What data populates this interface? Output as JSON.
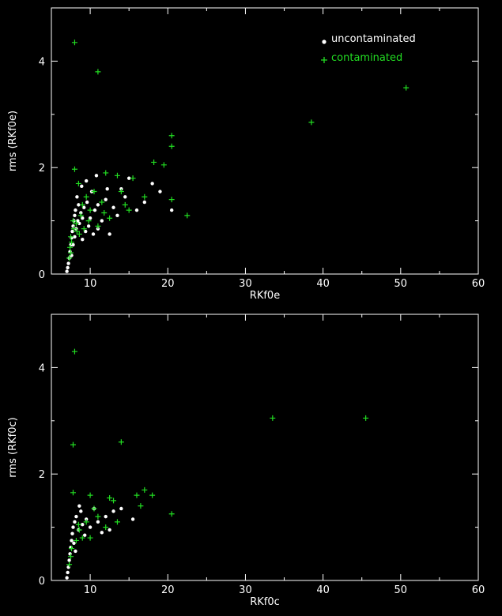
{
  "colors": {
    "background": "#000000",
    "axes": "#ffffff",
    "uncontaminated": "#ffffff",
    "contaminated": "#22dd22"
  },
  "legend": {
    "uncontaminated": "uncontaminated",
    "contaminated": "contaminated",
    "placement": "top-right"
  },
  "chart_data": [
    {
      "type": "scatter",
      "xlabel": "RKf0e",
      "ylabel": "rms (RKf0e)",
      "xlim": [
        5,
        60
      ],
      "ylim": [
        0,
        5
      ],
      "xticks": [
        10,
        20,
        30,
        40,
        50,
        60
      ],
      "yticks": [
        0,
        2,
        4
      ],
      "grid": false,
      "series": [
        {
          "name": "uncontaminated",
          "marker": "dot",
          "points": [
            [
              7.0,
              0.05
            ],
            [
              7.1,
              0.12
            ],
            [
              7.2,
              0.2
            ],
            [
              7.3,
              0.3
            ],
            [
              7.4,
              0.42
            ],
            [
              7.5,
              0.55
            ],
            [
              7.6,
              0.68
            ],
            [
              7.7,
              0.8
            ],
            [
              7.8,
              0.9
            ],
            [
              7.9,
              1.0
            ],
            [
              8.0,
              1.1
            ],
            [
              8.1,
              1.2
            ],
            [
              8.2,
              0.85
            ],
            [
              8.4,
              1.0
            ],
            [
              8.5,
              1.3
            ],
            [
              8.6,
              0.95
            ],
            [
              8.8,
              1.15
            ],
            [
              9.0,
              1.05
            ],
            [
              9.2,
              1.25
            ],
            [
              9.4,
              0.8
            ],
            [
              9.6,
              1.35
            ],
            [
              9.8,
              0.9
            ],
            [
              10.0,
              1.05
            ],
            [
              10.2,
              1.55
            ],
            [
              10.4,
              0.75
            ],
            [
              10.6,
              1.2
            ],
            [
              11.0,
              1.3
            ],
            [
              11.5,
              1.0
            ],
            [
              12.0,
              1.4
            ],
            [
              12.5,
              0.75
            ],
            [
              13.0,
              1.25
            ],
            [
              13.5,
              1.1
            ],
            [
              14.0,
              1.6
            ],
            [
              14.5,
              1.45
            ],
            [
              15.0,
              1.8
            ],
            [
              16.0,
              1.2
            ],
            [
              17.0,
              1.35
            ],
            [
              18.0,
              1.7
            ],
            [
              19.0,
              1.55
            ],
            [
              20.5,
              1.2
            ],
            [
              8.3,
              1.45
            ],
            [
              8.9,
              1.65
            ],
            [
              9.5,
              1.75
            ],
            [
              10.8,
              1.85
            ],
            [
              12.2,
              1.6
            ],
            [
              7.6,
              0.35
            ],
            [
              7.8,
              0.55
            ],
            [
              8.0,
              0.7
            ],
            [
              9.0,
              0.65
            ],
            [
              11.0,
              0.85
            ]
          ]
        },
        {
          "name": "contaminated",
          "marker": "plus",
          "points": [
            [
              8.0,
              4.35
            ],
            [
              11.0,
              3.8
            ],
            [
              50.7,
              3.5
            ],
            [
              38.5,
              2.85
            ],
            [
              20.5,
              2.6
            ],
            [
              20.5,
              2.4
            ],
            [
              18.2,
              2.1
            ],
            [
              19.5,
              2.05
            ],
            [
              8.0,
              1.97
            ],
            [
              12.0,
              1.9
            ],
            [
              13.5,
              1.85
            ],
            [
              15.5,
              1.8
            ],
            [
              14.0,
              1.55
            ],
            [
              17.0,
              1.45
            ],
            [
              20.5,
              1.4
            ],
            [
              22.5,
              1.1
            ],
            [
              15.0,
              1.2
            ],
            [
              10.5,
              1.55
            ],
            [
              9.0,
              1.3
            ],
            [
              11.5,
              1.35
            ],
            [
              8.5,
              1.7
            ],
            [
              9.5,
              1.45
            ],
            [
              7.8,
              1.0
            ],
            [
              8.2,
              0.95
            ],
            [
              10.0,
              1.2
            ],
            [
              8.8,
              1.1
            ],
            [
              7.5,
              0.7
            ],
            [
              8.3,
              0.8
            ],
            [
              9.2,
              0.85
            ],
            [
              11.0,
              0.9
            ],
            [
              7.4,
              0.5
            ],
            [
              7.6,
              0.6
            ],
            [
              7.9,
              0.85
            ],
            [
              8.6,
              0.75
            ],
            [
              12.5,
              1.05
            ],
            [
              14.5,
              1.3
            ],
            [
              7.3,
              0.3
            ],
            [
              7.5,
              0.4
            ],
            [
              9.8,
              1.0
            ],
            [
              11.8,
              1.15
            ]
          ]
        }
      ]
    },
    {
      "type": "scatter",
      "xlabel": "RKf0c",
      "ylabel": "rms (RKf0c)",
      "xlim": [
        5,
        60
      ],
      "ylim": [
        0,
        5
      ],
      "xticks": [
        10,
        20,
        30,
        40,
        50,
        60
      ],
      "yticks": [
        0,
        2,
        4
      ],
      "grid": false,
      "series": [
        {
          "name": "uncontaminated",
          "marker": "dot",
          "points": [
            [
              7.0,
              0.05
            ],
            [
              7.1,
              0.15
            ],
            [
              7.2,
              0.25
            ],
            [
              7.3,
              0.38
            ],
            [
              7.4,
              0.5
            ],
            [
              7.5,
              0.62
            ],
            [
              7.6,
              0.75
            ],
            [
              7.7,
              0.88
            ],
            [
              7.8,
              1.0
            ],
            [
              8.0,
              1.1
            ],
            [
              8.2,
              1.2
            ],
            [
              8.5,
              0.95
            ],
            [
              8.8,
              1.3
            ],
            [
              9.0,
              1.05
            ],
            [
              9.5,
              1.15
            ],
            [
              10.0,
              1.0
            ],
            [
              10.5,
              1.35
            ],
            [
              11.0,
              1.1
            ],
            [
              12.0,
              1.2
            ],
            [
              12.5,
              0.95
            ],
            [
              13.0,
              1.3
            ],
            [
              14.0,
              1.35
            ],
            [
              15.5,
              1.15
            ],
            [
              8.6,
              1.4
            ],
            [
              9.3,
              0.85
            ],
            [
              7.9,
              0.7
            ],
            [
              8.1,
              0.55
            ],
            [
              11.5,
              0.9
            ]
          ]
        },
        {
          "name": "contaminated",
          "marker": "plus",
          "points": [
            [
              8.0,
              4.3
            ],
            [
              33.5,
              3.05
            ],
            [
              45.5,
              3.05
            ],
            [
              14.0,
              2.6
            ],
            [
              7.8,
              2.55
            ],
            [
              16.0,
              1.6
            ],
            [
              17.0,
              1.7
            ],
            [
              18.0,
              1.6
            ],
            [
              16.5,
              1.4
            ],
            [
              10.0,
              1.6
            ],
            [
              12.5,
              1.55
            ],
            [
              13.0,
              1.5
            ],
            [
              7.8,
              1.65
            ],
            [
              20.5,
              1.25
            ],
            [
              13.5,
              1.1
            ],
            [
              10.5,
              1.35
            ],
            [
              9.5,
              1.1
            ],
            [
              11.0,
              1.2
            ],
            [
              8.5,
              1.05
            ],
            [
              8.2,
              0.75
            ],
            [
              9.0,
              0.8
            ],
            [
              10.0,
              0.8
            ],
            [
              7.6,
              0.6
            ],
            [
              7.5,
              0.45
            ],
            [
              8.6,
              0.95
            ],
            [
              12.0,
              1.0
            ],
            [
              7.3,
              0.3
            ]
          ]
        }
      ]
    }
  ]
}
